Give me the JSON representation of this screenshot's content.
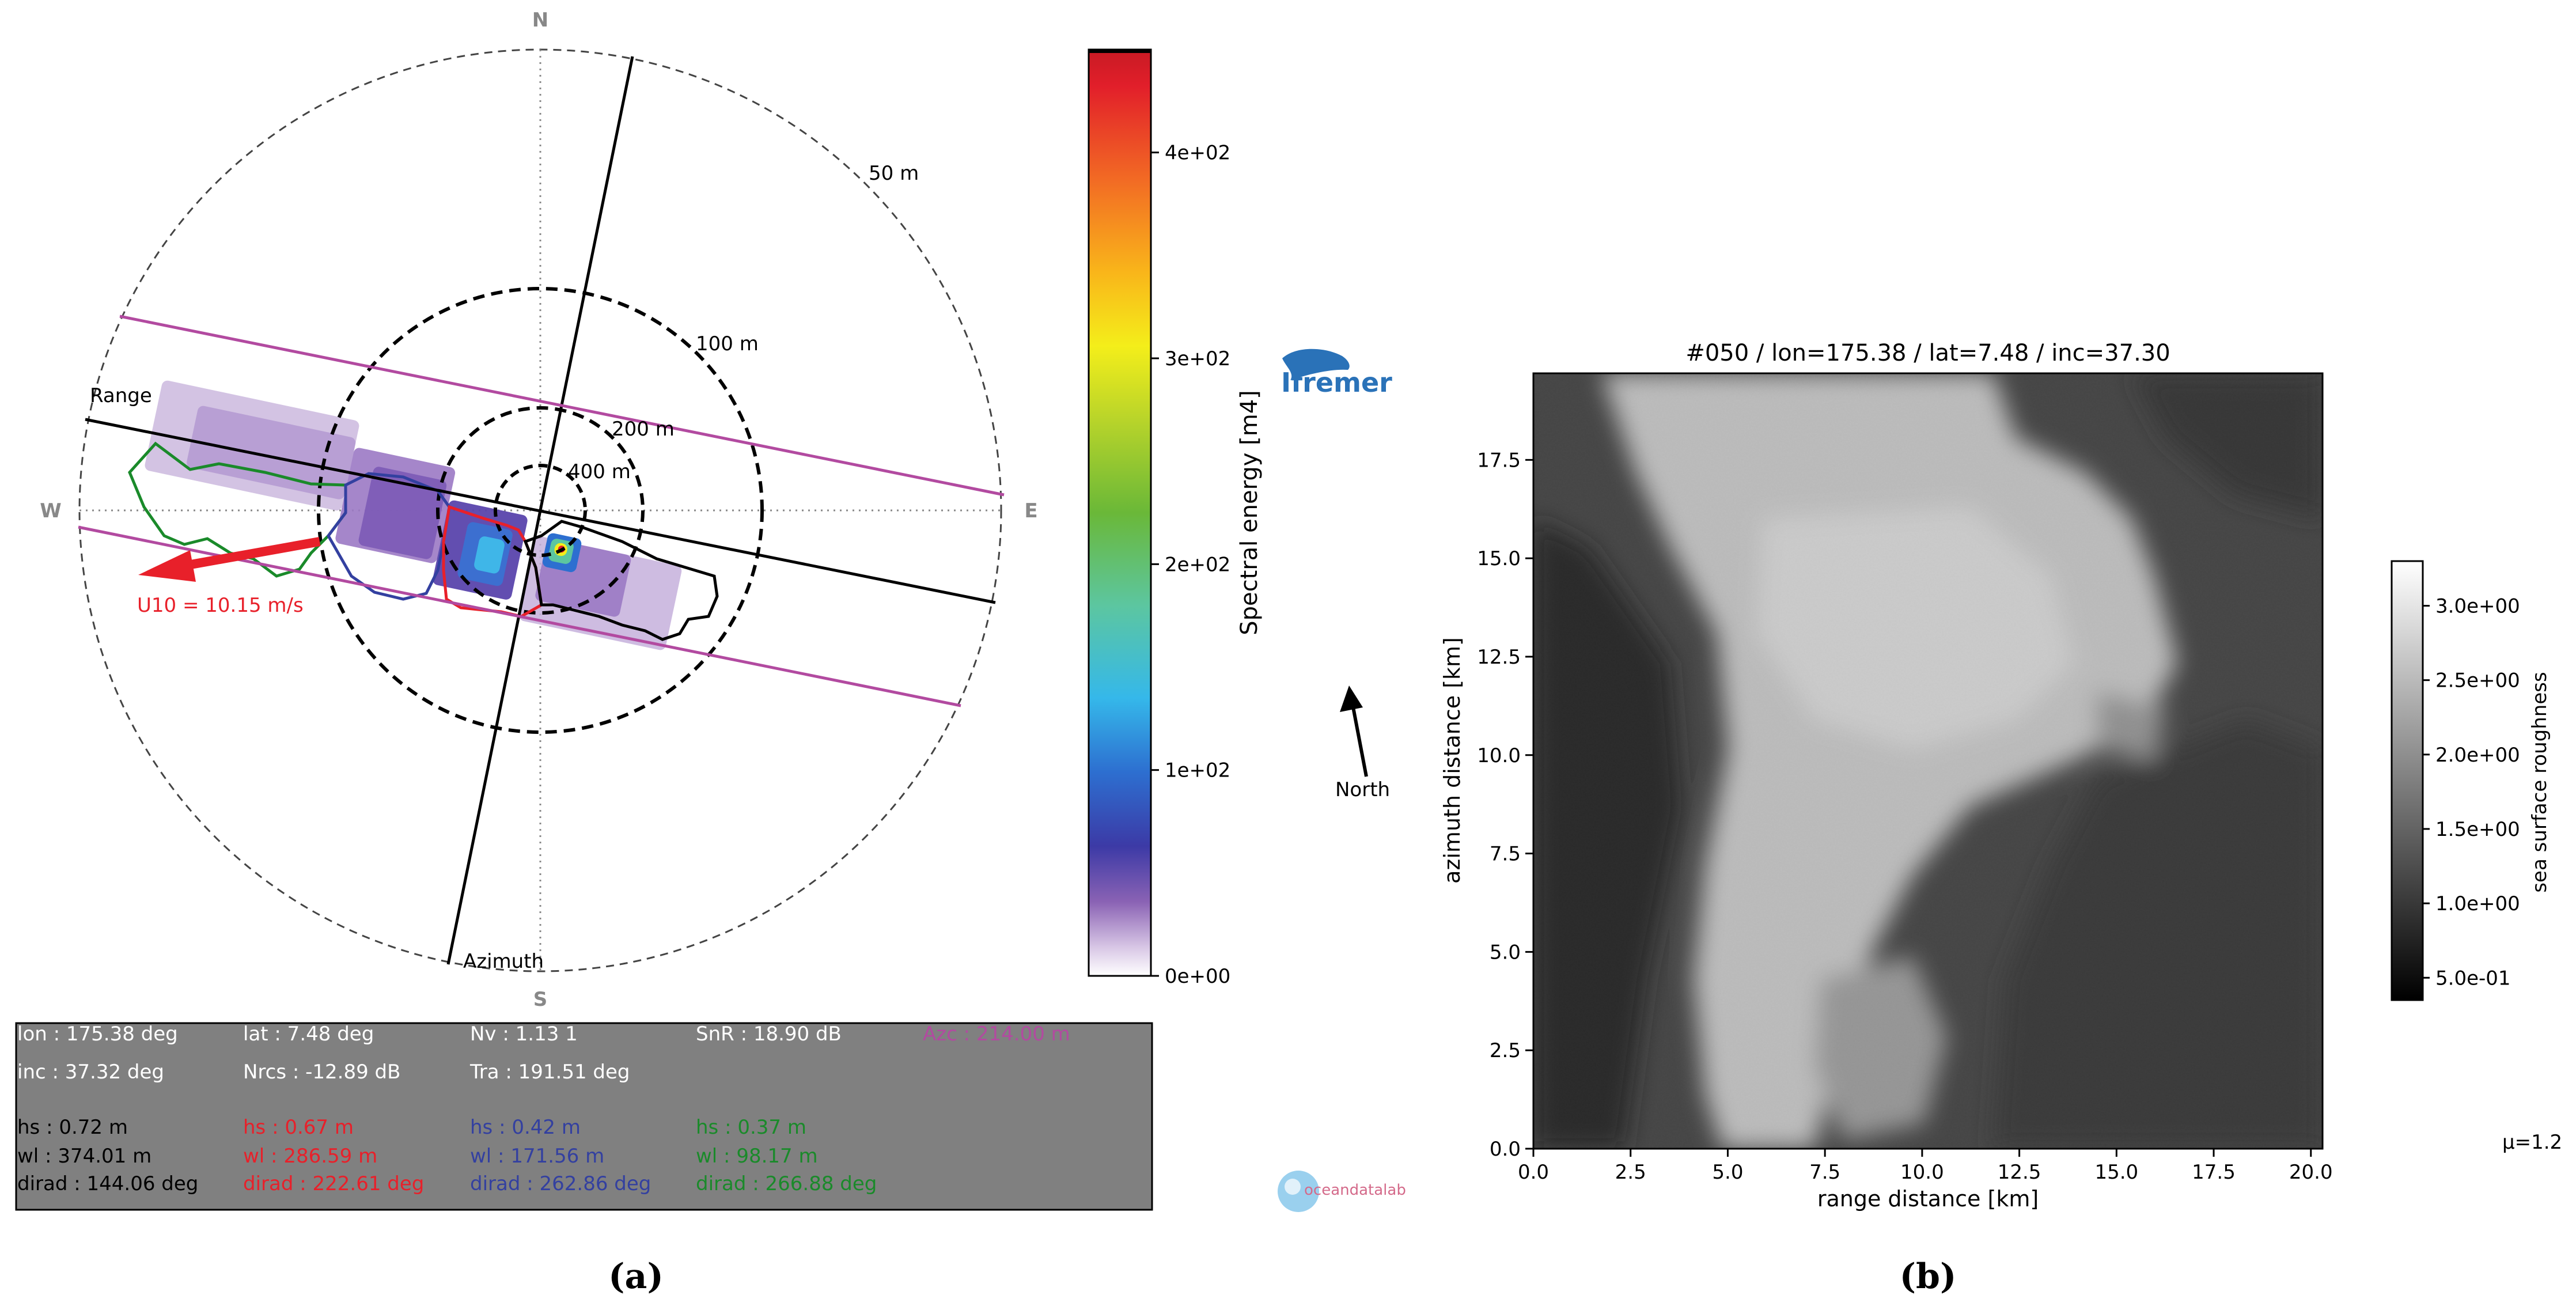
{
  "figure": {
    "panel_a_label": "(a)",
    "panel_b_label": "(b)"
  },
  "logos": {
    "ifremer": "Ifremer",
    "oceandatalab": "oceandatalab"
  },
  "north_arrow": {
    "label": "North"
  },
  "colors": {
    "range_line": "#000000",
    "azimuth_line": "#000000",
    "azc_lines": "#b24aa0",
    "wind_arrow": "#e8202a",
    "partition_black": "#000000",
    "partition_red": "#e8202a",
    "partition_blue": "#3340a0",
    "partition_green": "#1a8a2a",
    "panel_bg": "#808080"
  },
  "chart_data": [
    {
      "type": "heatmap",
      "projection": "polar",
      "compass": {
        "n": "N",
        "s": "S",
        "e": "E",
        "w": "W"
      },
      "wavelength_circles": [
        {
          "label": "50 m",
          "wavelength_m": 50
        },
        {
          "label": "100 m",
          "wavelength_m": 100
        },
        {
          "label": "200 m",
          "wavelength_m": 200
        },
        {
          "label": "400 m",
          "wavelength_m": 400
        }
      ],
      "axes_labels": {
        "range": "Range",
        "azimuth": "Azimuth"
      },
      "wind": {
        "label": "U10 = 10.15 m/s",
        "speed_ms": 10.15
      },
      "colorbar": {
        "label": "Spectral energy [m4]",
        "ticks": [
          "0e+00",
          "1e+02",
          "2e+02",
          "3e+02",
          "4e+02"
        ],
        "tick_values": [
          0,
          100,
          200,
          300,
          400
        ],
        "range": [
          0,
          450
        ],
        "colormap": "white-purple-blue-cyan-green-yellow-orange-red"
      },
      "info_panel": {
        "row1": [
          "lon : 175.38 deg",
          "lat : 7.48 deg",
          "Nv : 1.13 1",
          "SnR : 18.90 dB",
          "Azc : 214.00 m"
        ],
        "row2": [
          "inc : 37.32 deg",
          "Nrcs : -12.89 dB",
          "Tra : 191.51 deg"
        ],
        "partitions": [
          {
            "color": "black",
            "hs": "hs : 0.72 m",
            "wl": "wl : 374.01 m",
            "dirad": "dirad : 144.06 deg"
          },
          {
            "color": "red",
            "hs": "hs : 0.67 m",
            "wl": "wl : 286.59 m",
            "dirad": "dirad : 222.61 deg"
          },
          {
            "color": "blue",
            "hs": "hs : 0.42 m",
            "wl": "wl : 171.56 m",
            "dirad": "dirad : 262.86 deg"
          },
          {
            "color": "green",
            "hs": "hs : 0.37 m",
            "wl": "wl : 98.17 m",
            "dirad": "dirad : 266.88 deg"
          }
        ]
      }
    },
    {
      "type": "heatmap",
      "title": "#050 / lon=175.38 / lat=7.48 / inc=37.30",
      "xlabel": "range distance [km]",
      "ylabel": "azimuth distance [km]",
      "xlim": [
        0,
        20.3
      ],
      "ylim": [
        0,
        19.7
      ],
      "x_ticks": [
        "0.0",
        "2.5",
        "5.0",
        "7.5",
        "10.0",
        "12.5",
        "15.0",
        "17.5",
        "20.0"
      ],
      "x_tick_values": [
        0,
        2.5,
        5,
        7.5,
        10,
        12.5,
        15,
        17.5,
        20
      ],
      "y_ticks": [
        "0.0",
        "2.5",
        "5.0",
        "7.5",
        "10.0",
        "12.5",
        "15.0",
        "17.5"
      ],
      "y_tick_values": [
        0,
        2.5,
        5,
        7.5,
        10,
        12.5,
        15,
        17.5
      ],
      "colorbar": {
        "label": "sea surface roughness",
        "ticks": [
          "5.0e-01",
          "1.0e+00",
          "1.5e+00",
          "2.0e+00",
          "2.5e+00",
          "3.0e+00"
        ],
        "tick_values": [
          0.5,
          1.0,
          1.5,
          2.0,
          2.5,
          3.0
        ],
        "range": [
          0.35,
          3.3
        ],
        "colormap": "gray"
      },
      "mu_label": "μ=1.2"
    }
  ]
}
